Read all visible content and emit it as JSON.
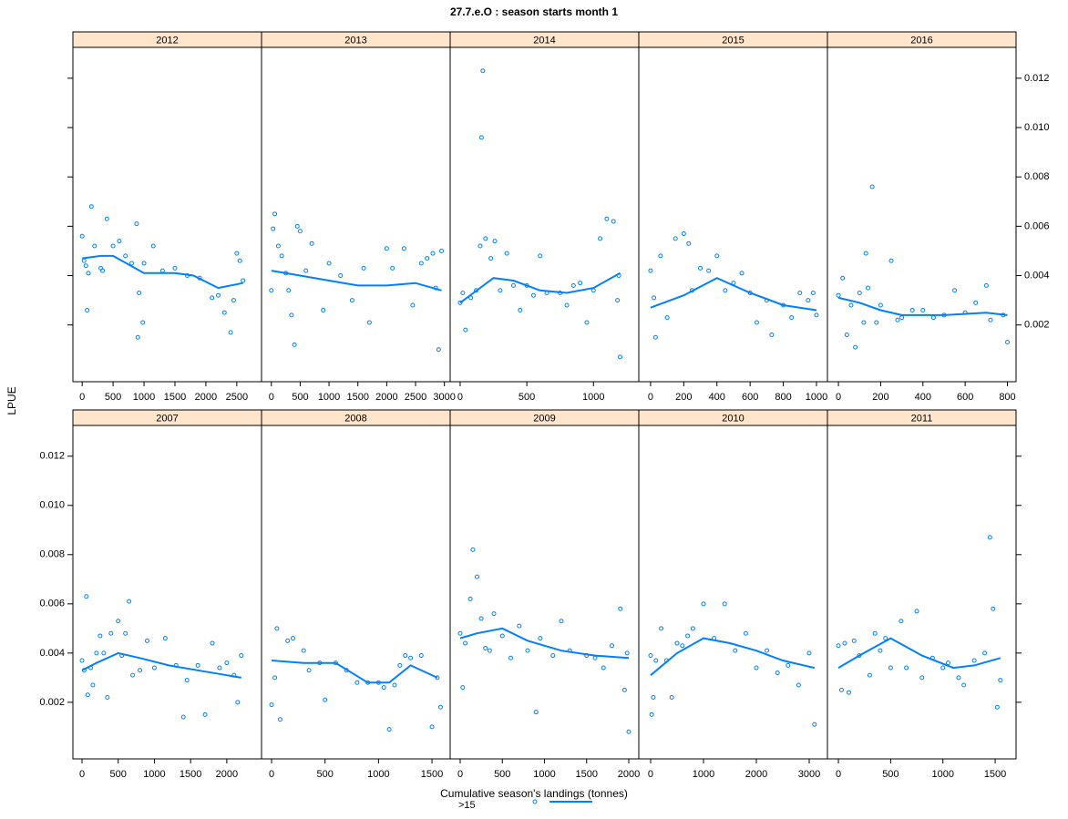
{
  "title": "27.7.e.O : season starts month 1",
  "x_label": "Cumulative season's landings (tonnes)",
  "y_label": "LPUE",
  "legend": {
    "name": ">15",
    "color": "#0080ff"
  },
  "ylim": [
    -0.0003,
    0.01325
  ],
  "yticks": [
    0.002,
    0.004,
    0.006,
    0.008,
    {
      "value": 0.01,
      "label": "0.010"
    },
    0.012
  ],
  "chart_data": [
    {
      "type": "scatter",
      "title": "2012",
      "xlim": [
        -150,
        2900
      ],
      "xticks": [
        0,
        500,
        1000,
        1500,
        2000,
        2500
      ],
      "points": {
        "x": [
          0,
          30,
          60,
          80,
          100,
          150,
          200,
          300,
          330,
          400,
          500,
          600,
          700,
          800,
          880,
          900,
          920,
          980,
          1000,
          1150,
          1300,
          1500,
          1700,
          1900,
          2100,
          2200,
          2300,
          2400,
          2450,
          2500,
          2550,
          2600
        ],
        "values": [
          0.0056,
          0.0046,
          0.0044,
          0.0026,
          0.0041,
          0.0068,
          0.0052,
          0.0043,
          0.0042,
          0.0063,
          0.0052,
          0.0054,
          0.0048,
          0.0045,
          0.0061,
          0.0015,
          0.0033,
          0.0021,
          0.0045,
          0.0052,
          0.0042,
          0.0043,
          0.004,
          0.0039,
          0.0031,
          0.0032,
          0.0025,
          0.0017,
          0.003,
          0.0049,
          0.0046,
          0.0038
        ]
      },
      "smooth": {
        "x": [
          0,
          300,
          500,
          1000,
          1500,
          1800,
          2200,
          2600
        ],
        "values": [
          0.0047,
          0.0048,
          0.0048,
          0.0041,
          0.0041,
          0.004,
          0.0035,
          0.0037
        ]
      }
    },
    {
      "type": "scatter",
      "title": "2013",
      "xlim": [
        -170,
        3100
      ],
      "xticks": [
        0,
        500,
        1000,
        1500,
        2000,
        2500,
        3000
      ],
      "points": {
        "x": [
          0,
          30,
          60,
          120,
          180,
          250,
          300,
          350,
          400,
          450,
          500,
          600,
          700,
          900,
          1000,
          1200,
          1400,
          1600,
          1700,
          2000,
          2100,
          2300,
          2450,
          2600,
          2700,
          2800,
          2850,
          2900,
          2950
        ],
        "values": [
          0.0034,
          0.0059,
          0.0065,
          0.0052,
          0.0048,
          0.0041,
          0.0034,
          0.0024,
          0.0012,
          0.006,
          0.0058,
          0.0042,
          0.0053,
          0.0026,
          0.0045,
          0.004,
          0.003,
          0.0043,
          0.0021,
          0.0051,
          0.0043,
          0.0051,
          0.0028,
          0.0045,
          0.0047,
          0.0049,
          0.0035,
          0.001,
          0.005
        ]
      },
      "smooth": {
        "x": [
          0,
          500,
          1000,
          1500,
          2000,
          2500,
          2950
        ],
        "values": [
          0.0042,
          0.004,
          0.0038,
          0.0036,
          0.0036,
          0.0037,
          0.0034
        ]
      }
    },
    {
      "type": "scatter",
      "title": "2014",
      "xlim": [
        -75,
        1340
      ],
      "xticks": [
        0,
        500,
        1000
      ],
      "points": {
        "x": [
          0,
          20,
          40,
          80,
          120,
          150,
          160,
          170,
          190,
          230,
          260,
          300,
          350,
          400,
          450,
          500,
          550,
          600,
          650,
          750,
          800,
          850,
          900,
          950,
          1000,
          1050,
          1100,
          1150,
          1180,
          1200,
          1190
        ],
        "values": [
          0.0029,
          0.0033,
          0.0018,
          0.0031,
          0.0034,
          0.0052,
          0.0096,
          0.0123,
          0.0055,
          0.0047,
          0.0054,
          0.0034,
          0.0049,
          0.0036,
          0.0026,
          0.0036,
          0.0032,
          0.0048,
          0.0033,
          0.0033,
          0.0028,
          0.0036,
          0.0037,
          0.0021,
          0.0034,
          0.0055,
          0.0063,
          0.0062,
          0.003,
          0.0007,
          0.004
        ]
      },
      "smooth": {
        "x": [
          0,
          100,
          250,
          400,
          600,
          800,
          1000,
          1200
        ],
        "values": [
          0.0029,
          0.0033,
          0.0039,
          0.0038,
          0.0034,
          0.0033,
          0.0035,
          0.0041
        ]
      }
    },
    {
      "type": "scatter",
      "title": "2015",
      "xlim": [
        -71,
        1066
      ],
      "xticks": [
        0,
        200,
        400,
        600,
        800,
        1000
      ],
      "points": {
        "x": [
          0,
          20,
          30,
          60,
          100,
          150,
          200,
          230,
          250,
          300,
          350,
          400,
          450,
          500,
          550,
          600,
          640,
          700,
          730,
          800,
          850,
          900,
          950,
          1000,
          980
        ],
        "values": [
          0.0042,
          0.0031,
          0.0015,
          0.0048,
          0.0023,
          0.0055,
          0.0057,
          0.0053,
          0.0034,
          0.0043,
          0.0042,
          0.0048,
          0.0034,
          0.0037,
          0.0041,
          0.0033,
          0.0021,
          0.003,
          0.0016,
          0.0028,
          0.0023,
          0.0033,
          0.003,
          0.0024,
          0.0033
        ]
      },
      "smooth": {
        "x": [
          0,
          200,
          400,
          600,
          800,
          1000
        ],
        "values": [
          0.0027,
          0.0032,
          0.0039,
          0.0033,
          0.0028,
          0.0026
        ]
      }
    },
    {
      "type": "scatter",
      "title": "2016",
      "xlim": [
        -52,
        841
      ],
      "xticks": [
        0,
        200,
        400,
        600,
        800
      ],
      "points": {
        "x": [
          0,
          20,
          40,
          60,
          80,
          100,
          120,
          130,
          140,
          160,
          180,
          200,
          250,
          280,
          300,
          350,
          400,
          450,
          500,
          550,
          600,
          650,
          700,
          720,
          780,
          800
        ],
        "values": [
          0.0032,
          0.0039,
          0.0016,
          0.0028,
          0.0011,
          0.0033,
          0.0021,
          0.0049,
          0.0035,
          0.0076,
          0.0021,
          0.0028,
          0.0046,
          0.0022,
          0.0023,
          0.0026,
          0.0026,
          0.0023,
          0.0024,
          0.0034,
          0.0025,
          0.0029,
          0.0036,
          0.0022,
          0.0024,
          0.0013
        ]
      },
      "smooth": {
        "x": [
          0,
          100,
          200,
          300,
          500,
          700,
          800
        ],
        "values": [
          0.0031,
          0.0029,
          0.0026,
          0.0024,
          0.0024,
          0.0025,
          0.0024
        ]
      }
    },
    {
      "type": "scatter",
      "title": "2007",
      "xlim": [
        -126,
        2480
      ],
      "xticks": [
        0,
        500,
        1000,
        1500,
        2000
      ],
      "points": {
        "x": [
          0,
          30,
          60,
          80,
          120,
          150,
          200,
          250,
          300,
          350,
          400,
          500,
          550,
          600,
          650,
          700,
          800,
          900,
          1000,
          1150,
          1300,
          1400,
          1450,
          1600,
          1700,
          1800,
          1900,
          2000,
          2100,
          2150,
          2200
        ],
        "values": [
          0.0037,
          0.0033,
          0.0063,
          0.0023,
          0.0034,
          0.0027,
          0.004,
          0.0047,
          0.004,
          0.0022,
          0.0048,
          0.0053,
          0.0039,
          0.0048,
          0.0061,
          0.0031,
          0.0033,
          0.0045,
          0.0034,
          0.0046,
          0.0035,
          0.0014,
          0.0029,
          0.0035,
          0.0015,
          0.0044,
          0.0034,
          0.0036,
          0.0031,
          0.002,
          0.0039
        ]
      },
      "smooth": {
        "x": [
          0,
          200,
          500,
          800,
          1200,
          1600,
          2000,
          2200
        ],
        "values": [
          0.0033,
          0.0036,
          0.004,
          0.0038,
          0.0035,
          0.0033,
          0.0031,
          0.003
        ]
      }
    },
    {
      "type": "scatter",
      "title": "2008",
      "xlim": [
        -94,
        1670
      ],
      "xticks": [
        0,
        500,
        1000,
        1500
      ],
      "points": {
        "x": [
          0,
          30,
          50,
          80,
          150,
          200,
          300,
          350,
          450,
          500,
          600,
          700,
          800,
          900,
          1000,
          1050,
          1100,
          1150,
          1200,
          1250,
          1300,
          1400,
          1500,
          1550,
          1580
        ],
        "values": [
          0.0019,
          0.003,
          0.005,
          0.0013,
          0.0045,
          0.0046,
          0.0041,
          0.0033,
          0.0036,
          0.0021,
          0.0036,
          0.0033,
          0.0028,
          0.0028,
          0.0028,
          0.0026,
          0.0009,
          0.0027,
          0.0035,
          0.0039,
          0.0038,
          0.0039,
          0.001,
          0.003,
          0.0018
        ]
      },
      "smooth": {
        "x": [
          0,
          300,
          600,
          900,
          1100,
          1300,
          1550
        ],
        "values": [
          0.0037,
          0.0036,
          0.0036,
          0.0028,
          0.0028,
          0.0035,
          0.003
        ]
      }
    },
    {
      "type": "scatter",
      "title": "2009",
      "xlim": [
        -119,
        2119
      ],
      "xticks": [
        0,
        500,
        1000,
        1500,
        2000
      ],
      "points": {
        "x": [
          0,
          30,
          60,
          120,
          150,
          200,
          250,
          300,
          350,
          400,
          500,
          600,
          700,
          800,
          900,
          950,
          1100,
          1200,
          1300,
          1500,
          1600,
          1700,
          1800,
          1900,
          1950,
          2000,
          1980
        ],
        "values": [
          0.0048,
          0.0026,
          0.0044,
          0.0062,
          0.0082,
          0.0071,
          0.0054,
          0.0042,
          0.0041,
          0.0056,
          0.0047,
          0.0038,
          0.0051,
          0.0041,
          0.0016,
          0.0046,
          0.0039,
          0.0053,
          0.0041,
          0.0039,
          0.0038,
          0.0034,
          0.0043,
          0.0058,
          0.0025,
          0.0008,
          0.004
        ]
      },
      "smooth": {
        "x": [
          0,
          200,
          500,
          800,
          1200,
          1600,
          2000
        ],
        "values": [
          0.0046,
          0.0048,
          0.005,
          0.0045,
          0.0041,
          0.0039,
          0.0038
        ]
      }
    },
    {
      "type": "scatter",
      "title": "2010",
      "xlim": [
        -224,
        3345
      ],
      "xticks": [
        0,
        1000,
        2000,
        3000
      ],
      "points": {
        "x": [
          0,
          20,
          50,
          100,
          200,
          300,
          400,
          500,
          600,
          700,
          800,
          1000,
          1200,
          1400,
          1600,
          1800,
          2000,
          2200,
          2400,
          2600,
          2800,
          3000,
          3100
        ],
        "values": [
          0.0039,
          0.0015,
          0.0022,
          0.0037,
          0.005,
          0.0037,
          0.0022,
          0.0044,
          0.0043,
          0.0047,
          0.005,
          0.006,
          0.0046,
          0.006,
          0.0041,
          0.0048,
          0.0034,
          0.0041,
          0.0032,
          0.0035,
          0.0027,
          0.004,
          0.0011
        ]
      },
      "smooth": {
        "x": [
          0,
          500,
          1000,
          1500,
          2000,
          2500,
          3100
        ],
        "values": [
          0.0031,
          0.004,
          0.0046,
          0.0044,
          0.0041,
          0.0037,
          0.0034
        ]
      }
    },
    {
      "type": "scatter",
      "title": "2011",
      "xlim": [
        -105,
        1700
      ],
      "xticks": [
        0,
        500,
        1000,
        1500
      ],
      "points": {
        "x": [
          0,
          30,
          60,
          100,
          150,
          200,
          300,
          350,
          400,
          450,
          500,
          600,
          650,
          750,
          800,
          900,
          1000,
          1050,
          1150,
          1200,
          1300,
          1400,
          1450,
          1480,
          1520,
          1550
        ],
        "values": [
          0.0043,
          0.0025,
          0.0044,
          0.0024,
          0.0045,
          0.0039,
          0.0031,
          0.0048,
          0.0041,
          0.0046,
          0.0034,
          0.0053,
          0.0034,
          0.0057,
          0.003,
          0.0038,
          0.0034,
          0.0036,
          0.003,
          0.0027,
          0.0037,
          0.004,
          0.0087,
          0.0058,
          0.0018,
          0.0029
        ]
      },
      "smooth": {
        "x": [
          0,
          200,
          500,
          800,
          1100,
          1300,
          1550
        ],
        "values": [
          0.0034,
          0.0039,
          0.0046,
          0.0039,
          0.0034,
          0.0035,
          0.0038
        ]
      }
    }
  ]
}
